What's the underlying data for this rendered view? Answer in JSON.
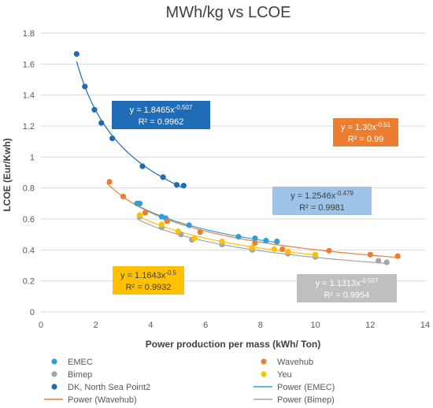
{
  "chart_data": {
    "type": "scatter",
    "title": "MWh/kg vs LCOE",
    "xlabel": "Power production per mass (kWh/ Ton)",
    "ylabel": "LCOE (Eur/Kwh)",
    "xlim": [
      0,
      14
    ],
    "ylim": [
      0,
      1.8
    ],
    "x_ticks": [
      "0",
      "2",
      "4",
      "6",
      "8",
      "10",
      "12",
      "14"
    ],
    "y_ticks": [
      "0",
      "0.2",
      "0.4",
      "0.6",
      "0.8",
      "1",
      "1.2",
      "1.4",
      "1.6",
      "1.8"
    ],
    "grid": "horizontal",
    "legend_position": "bottom",
    "series": [
      {
        "name": "EMEC",
        "color": "#2e9fd6",
        "points": [
          [
            3.5,
            0.7
          ],
          [
            3.6,
            0.7
          ],
          [
            4.4,
            0.615
          ],
          [
            4.55,
            0.605
          ],
          [
            5.4,
            0.56
          ],
          [
            7.2,
            0.485
          ],
          [
            7.8,
            0.475
          ],
          [
            8.2,
            0.46
          ],
          [
            8.6,
            0.455
          ]
        ]
      },
      {
        "name": "Wavehub",
        "color": "#ed7d31",
        "points": [
          [
            2.5,
            0.84
          ],
          [
            3.0,
            0.745
          ],
          [
            3.8,
            0.64
          ],
          [
            4.6,
            0.585
          ],
          [
            5.8,
            0.515
          ],
          [
            7.8,
            0.445
          ],
          [
            8.8,
            0.405
          ],
          [
            10.5,
            0.395
          ],
          [
            12.0,
            0.37
          ],
          [
            13.0,
            0.36
          ]
        ]
      },
      {
        "name": "Bimep",
        "color": "#a5a5a5",
        "points": [
          [
            3.6,
            0.615
          ],
          [
            4.4,
            0.545
          ],
          [
            5.1,
            0.5
          ],
          [
            5.5,
            0.465
          ],
          [
            6.6,
            0.435
          ],
          [
            7.7,
            0.4
          ],
          [
            9.0,
            0.375
          ],
          [
            10.0,
            0.355
          ],
          [
            12.3,
            0.33
          ],
          [
            12.6,
            0.32
          ]
        ]
      },
      {
        "name": "DK, North Sea Point2",
        "color": "#1f6bb5",
        "points": [
          [
            1.3,
            1.665
          ],
          [
            1.6,
            1.455
          ],
          [
            1.95,
            1.305
          ],
          [
            2.2,
            1.22
          ],
          [
            2.6,
            1.12
          ],
          [
            3.7,
            0.94
          ],
          [
            4.45,
            0.87
          ],
          [
            4.95,
            0.82
          ],
          [
            5.2,
            0.815
          ]
        ]
      },
      {
        "name": "Yeu",
        "color": "#ffc000",
        "points": [
          [
            3.6,
            0.625
          ],
          [
            4.4,
            0.565
          ],
          [
            5.0,
            0.52
          ],
          [
            5.6,
            0.475
          ],
          [
            6.6,
            0.455
          ],
          [
            7.7,
            0.415
          ],
          [
            8.5,
            0.405
          ],
          [
            9.0,
            0.39
          ],
          [
            10.0,
            0.37
          ]
        ]
      }
    ],
    "trendlines": [
      {
        "name": "Power (EMEC)",
        "color": "#2e9fd6",
        "a": 1.2546,
        "b": -0.479,
        "x_range": [
          3.4,
          8.7
        ],
        "equation": "y = 1.2546x",
        "exponent": "-0.479",
        "r2": "R² = 0.9981",
        "box_color": "#9dc3e6",
        "text_color": "#404040"
      },
      {
        "name": "Power (Wavehub)",
        "color": "#ed7d31",
        "a": 1.3,
        "b": -0.51,
        "x_range": [
          2.4,
          13.1
        ],
        "equation": "y = 1.30x",
        "exponent": "-0.51",
        "r2": "R² = 0.99",
        "box_color": "#ed7d31",
        "text_color": "#ffffff"
      },
      {
        "name": "Power (Bimep)",
        "color": "#a5a5a5",
        "a": 1.1313,
        "b": -0.507,
        "x_range": [
          3.5,
          12.7
        ],
        "equation": "y = 1.1313x",
        "exponent": "-0.507",
        "r2": "R² = 0.9954",
        "box_color": "#bfbfbf",
        "text_color": "#ffffff"
      },
      {
        "name": "DK",
        "color": "#1f6bb5",
        "a": 1.8465,
        "b": -0.507,
        "x_range": [
          1.3,
          5.2
        ],
        "equation": "y = 1.8465x",
        "exponent": "-0.507",
        "r2": "R² = 0.9962",
        "box_color": "#1f6bb5",
        "text_color": "#ffffff"
      },
      {
        "name": "Yeu",
        "color": "#ffc000",
        "a": 1.1643,
        "b": -0.5,
        "x_range": [
          3.5,
          10.1
        ],
        "equation": "y = 1.1643x",
        "exponent": "-0.5",
        "r2": "R² = 0.9932",
        "box_color": "#ffc000",
        "text_color": "#404040"
      }
    ]
  },
  "legend": [
    {
      "label": "EMEC",
      "kind": "marker",
      "color": "#2e9fd6"
    },
    {
      "label": "Wavehub",
      "kind": "marker",
      "color": "#ed7d31"
    },
    {
      "label": "Bimep",
      "kind": "marker",
      "color": "#a5a5a5"
    },
    {
      "label": "Yeu",
      "kind": "marker",
      "color": "#ffc000"
    },
    {
      "label": "DK, North Sea Point2",
      "kind": "marker",
      "color": "#1f6bb5"
    },
    {
      "label": "Power (EMEC)",
      "kind": "line",
      "color": "#2e9fd6"
    },
    {
      "label": "Power (Wavehub)",
      "kind": "line",
      "color": "#ed7d31"
    },
    {
      "label": "Power (Bimep)",
      "kind": "line",
      "color": "#a5a5a5"
    }
  ]
}
